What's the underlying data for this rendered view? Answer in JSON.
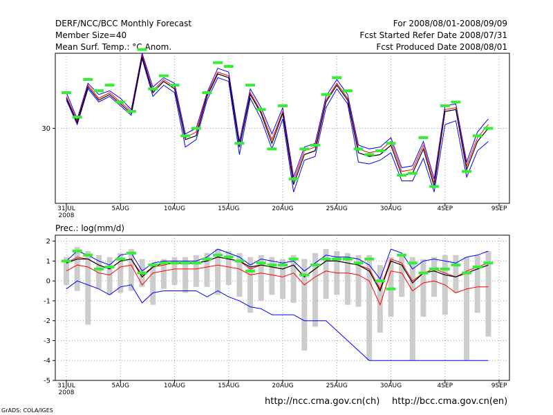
{
  "header": {
    "title": "DERF/NCC/BCC Monthly Forecast",
    "member_size": "Member Size=40",
    "variable": "Mean Surf. Temp.: °C Anom.",
    "period": "For 2008/08/01-2008/09/09",
    "started": "Fcst Started Refer Date 2008/07/31",
    "produced": "Fcst Produced Date 2008/08/01"
  },
  "footer": {
    "url_ch": "http://ncc.cma.gov.cn(ch)",
    "url_en": "http://bcc.cma.gov.cn(en)",
    "grads": "GrADS: COLA/IGES"
  },
  "colors": {
    "gridline": "#9a9a9a",
    "ensemble_envelope": "#0000ff",
    "ensemble_member": "#ff0000",
    "ensemble_mean": "#000000",
    "observed": "#33ee33",
    "spread_bar": "#cccccc"
  },
  "chart_data": [
    {
      "type": "line",
      "title": "Mean Surf. Temp.: °C Anom.",
      "x_tick_labels": [
        "31JUL",
        "5AUG",
        "10AUG",
        "15AUG",
        "20AUG",
        "25AUG",
        "30AUG",
        "4SEP",
        "9SEP"
      ],
      "x_tick_positions": [
        0,
        5,
        10,
        15,
        20,
        25,
        30,
        35,
        40
      ],
      "x_sublabel": "2008",
      "y_tick_labels": [
        "30"
      ],
      "y_tick_values": [
        30
      ],
      "ylim": [
        26,
        34
      ],
      "grid": true,
      "days": [
        1,
        2,
        3,
        4,
        5,
        6,
        7,
        8,
        9,
        10,
        11,
        12,
        13,
        14,
        15,
        16,
        17,
        18,
        19,
        20,
        21,
        22,
        23,
        24,
        25,
        26,
        27,
        28,
        29,
        30,
        31,
        32,
        33,
        34,
        35,
        36,
        37,
        38,
        39,
        40
      ],
      "series": [
        {
          "name": "upper",
          "values": [
            31.9,
            30.5,
            32.4,
            31.8,
            32.0,
            31.6,
            31.0,
            34.0,
            32.2,
            32.7,
            32.4,
            29.7,
            30.0,
            31.9,
            33.2,
            33.0,
            29.3,
            32.1,
            31.1,
            29.7,
            31.1,
            27.4,
            29.0,
            29.2,
            31.7,
            32.6,
            31.8,
            29.1,
            28.9,
            29.0,
            29.5,
            27.9,
            28.0,
            29.3,
            27.3,
            31.2,
            31.3,
            28.2,
            29.8,
            30.5
          ]
        },
        {
          "name": "member",
          "values": [
            31.7,
            30.4,
            32.3,
            31.6,
            31.9,
            31.4,
            30.9,
            33.9,
            32.0,
            32.6,
            32.2,
            29.5,
            29.8,
            31.8,
            33.0,
            32.8,
            29.1,
            31.9,
            30.9,
            29.4,
            30.9,
            27.2,
            28.8,
            29.0,
            31.5,
            32.4,
            31.6,
            28.9,
            28.7,
            28.8,
            29.3,
            27.7,
            27.8,
            29.1,
            27.1,
            31.0,
            31.1,
            28.0,
            29.5,
            30.2
          ]
        },
        {
          "name": "mean",
          "values": [
            31.6,
            30.3,
            32.2,
            31.5,
            31.8,
            31.3,
            30.8,
            33.8,
            31.9,
            32.5,
            32.1,
            29.4,
            29.6,
            31.7,
            32.9,
            32.7,
            29.0,
            31.8,
            30.8,
            29.2,
            30.8,
            27.0,
            28.6,
            28.8,
            31.4,
            32.3,
            31.5,
            28.7,
            28.5,
            28.6,
            29.1,
            27.5,
            27.6,
            28.9,
            26.9,
            30.9,
            31.0,
            27.8,
            29.3,
            30.0
          ]
        },
        {
          "name": "lower",
          "values": [
            31.5,
            30.2,
            32.1,
            31.4,
            31.7,
            31.2,
            30.7,
            33.7,
            31.7,
            32.3,
            31.9,
            29.0,
            29.4,
            31.5,
            32.7,
            32.5,
            28.6,
            31.6,
            30.5,
            28.9,
            30.5,
            26.6,
            28.3,
            28.5,
            31.1,
            32.1,
            31.3,
            28.2,
            28.1,
            28.3,
            28.7,
            27.2,
            27.2,
            28.4,
            26.6,
            30.2,
            30.4,
            27.4,
            28.8,
            29.3
          ]
        },
        {
          "name": "observed",
          "values": [
            31.9,
            30.6,
            32.6,
            32.0,
            32.3,
            31.4,
            30.9,
            34.2,
            32.1,
            32.8,
            32.3,
            29.6,
            30.0,
            31.9,
            33.5,
            33.3,
            29.2,
            32.3,
            31.0,
            28.9,
            31.2,
            27.3,
            28.9,
            29.1,
            31.8,
            32.7,
            32.0,
            28.9,
            28.6,
            28.8,
            29.2,
            27.5,
            27.6,
            29.5,
            26.9,
            31.2,
            31.4,
            27.7,
            29.6,
            30.0
          ]
        }
      ]
    },
    {
      "type": "line",
      "title": "Prec.: log(mm/d)",
      "x_tick_labels": [
        "31JUL",
        "5AUG",
        "10AUG",
        "15AUG",
        "20AUG",
        "25AUG",
        "30AUG",
        "4SEP",
        "9SEP"
      ],
      "x_tick_positions": [
        0,
        5,
        10,
        15,
        20,
        25,
        30,
        35,
        40
      ],
      "x_sublabel": "2008",
      "y_tick_labels": [
        "2",
        "1",
        "0",
        "-1",
        "-2",
        "-3",
        "-4",
        "-5"
      ],
      "y_tick_values": [
        2,
        1,
        0,
        -1,
        -2,
        -3,
        -4,
        -5
      ],
      "ylim": [
        -5,
        2.3
      ],
      "grid": true,
      "days": [
        1,
        2,
        3,
        4,
        5,
        6,
        7,
        8,
        9,
        10,
        11,
        12,
        13,
        14,
        15,
        16,
        17,
        18,
        19,
        20,
        21,
        22,
        23,
        24,
        25,
        26,
        27,
        28,
        29,
        30,
        31,
        32,
        33,
        34,
        35,
        36,
        37,
        38,
        39,
        40
      ],
      "bars": {
        "top": [
          1.2,
          1.7,
          1.5,
          1.3,
          1.2,
          1.4,
          1.6,
          1.1,
          0.9,
          1.1,
          1.2,
          1.2,
          1.3,
          1.4,
          1.6,
          1.5,
          1.4,
          1.2,
          1.3,
          1.2,
          1.1,
          1.3,
          1.1,
          1.4,
          1.6,
          1.5,
          1.4,
          1.3,
          1.3,
          0.8,
          1.2,
          1.3,
          1.2,
          1.1,
          1.2,
          1.3,
          1.3,
          1.2,
          1.3,
          1.5
        ],
        "bottom": [
          -0.2,
          -0.5,
          -2.2,
          -0.4,
          -0.7,
          -0.6,
          -0.5,
          -0.3,
          -1.2,
          -0.4,
          -0.2,
          -0.6,
          -0.3,
          -0.3,
          -0.7,
          -0.2,
          -0.8,
          -1.6,
          -1.0,
          -0.7,
          -0.9,
          -1.1,
          -3.5,
          -2.3,
          -0.9,
          -0.7,
          -1.2,
          -1.3,
          -4.0,
          -2.6,
          -1.8,
          -0.8,
          -4.0,
          -1.8,
          -0.8,
          -1.7,
          -0.6,
          -4.0,
          -1.6,
          -2.8
        ]
      },
      "series": [
        {
          "name": "upper",
          "values": [
            1.0,
            1.5,
            1.3,
            1.0,
            0.8,
            1.3,
            1.4,
            0.5,
            0.9,
            1.0,
            1.0,
            1.0,
            1.0,
            1.2,
            1.6,
            1.4,
            1.2,
            0.8,
            1.1,
            1.0,
            0.9,
            1.0,
            0.5,
            0.9,
            1.3,
            1.2,
            1.2,
            1.1,
            0.8,
            0.1,
            1.6,
            1.4,
            0.6,
            1.0,
            1.1,
            1.0,
            0.9,
            1.2,
            1.3,
            1.5
          ]
        },
        {
          "name": "member",
          "values": [
            0.9,
            1.2,
            1.1,
            0.8,
            0.6,
            1.0,
            1.1,
            0.3,
            0.7,
            0.8,
            0.9,
            0.9,
            0.9,
            1.0,
            1.2,
            1.1,
            1.0,
            0.6,
            0.8,
            0.7,
            0.6,
            0.8,
            0.2,
            0.6,
            1.0,
            1.0,
            0.9,
            0.8,
            0.6,
            -0.4,
            1.1,
            0.9,
            0.0,
            0.4,
            0.6,
            0.4,
            0.2,
            0.5,
            0.7,
            0.9
          ]
        },
        {
          "name": "mean",
          "values": [
            0.9,
            1.1,
            1.1,
            0.8,
            0.6,
            1.0,
            1.1,
            0.2,
            0.7,
            0.9,
            0.9,
            0.9,
            0.9,
            1.0,
            1.2,
            1.1,
            1.0,
            0.7,
            0.8,
            0.7,
            0.6,
            0.8,
            0.2,
            0.6,
            1.0,
            1.0,
            0.9,
            0.8,
            0.5,
            -0.5,
            1.0,
            0.8,
            -0.1,
            0.4,
            0.5,
            0.3,
            0.2,
            0.4,
            0.6,
            0.8
          ]
        },
        {
          "name": "lower_inner",
          "values": [
            0.5,
            0.8,
            0.7,
            0.4,
            0.3,
            0.7,
            0.8,
            -0.2,
            0.4,
            0.5,
            0.6,
            0.6,
            0.6,
            0.7,
            0.8,
            0.7,
            0.6,
            0.3,
            0.4,
            0.3,
            0.2,
            0.4,
            -0.2,
            0.2,
            0.5,
            0.4,
            0.4,
            0.3,
            0.0,
            -1.2,
            0.5,
            0.4,
            -0.5,
            -0.1,
            0.0,
            -0.2,
            -0.6,
            -0.4,
            -0.3,
            -0.3
          ]
        },
        {
          "name": "lower",
          "values": [
            -0.4,
            0.0,
            -0.2,
            -0.4,
            -0.7,
            -0.3,
            -0.2,
            -1.1,
            -0.6,
            -0.5,
            -0.5,
            -0.5,
            -0.5,
            -0.8,
            -0.5,
            -0.8,
            -1.0,
            -1.3,
            -1.4,
            -1.7,
            -1.7,
            -1.7,
            -2.0,
            -2.0,
            -2.0,
            -2.5,
            -3.0,
            -3.5,
            -4.0,
            -4.0,
            -4.0,
            -4.0,
            -4.0,
            -4.0,
            -4.0,
            -4.0,
            -4.0,
            -4.0,
            -4.0,
            -4.0
          ]
        },
        {
          "name": "observed",
          "values": [
            1.0,
            1.5,
            1.3,
            0.6,
            0.7,
            1.1,
            1.4,
            0.4,
            0.8,
            0.9,
            0.9,
            0.9,
            0.9,
            1.1,
            1.3,
            1.2,
            1.0,
            0.5,
            0.9,
            0.8,
            0.8,
            1.1,
            0.3,
            0.8,
            1.1,
            1.1,
            1.1,
            0.9,
            1.1,
            0.0,
            -0.4,
            1.3,
            0.9,
            0.4,
            0.6,
            0.6,
            0.8,
            0.4,
            0.7,
            0.9
          ]
        }
      ]
    }
  ]
}
